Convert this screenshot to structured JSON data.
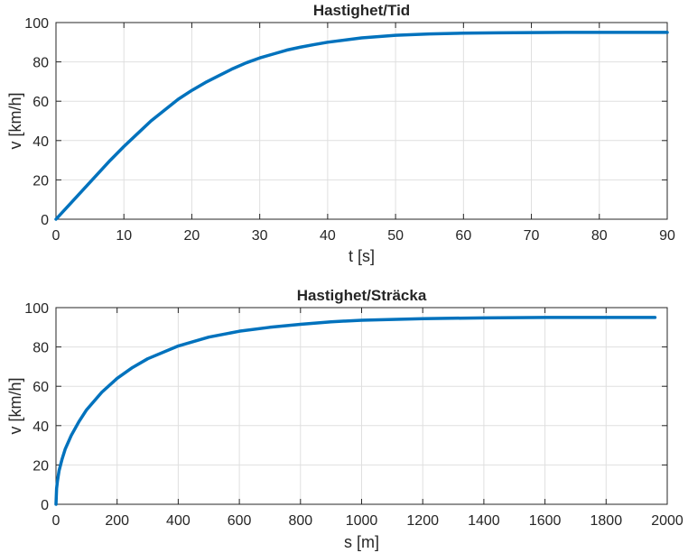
{
  "chart_data": [
    {
      "type": "line",
      "title": "Hastighet/Tid",
      "xlabel": "t [s]",
      "ylabel": "v [km/h]",
      "xlim": [
        0,
        90
      ],
      "ylim": [
        0,
        100
      ],
      "xticks": [
        0,
        10,
        20,
        30,
        40,
        50,
        60,
        70,
        80,
        90
      ],
      "yticks": [
        0,
        20,
        40,
        60,
        80,
        100
      ],
      "grid": true,
      "line_color": "#0072BD",
      "series": [
        {
          "x": [
            0,
            2,
            4,
            6,
            8,
            10,
            12,
            14,
            16,
            18,
            20,
            22,
            24,
            26,
            28,
            30,
            32,
            34,
            36,
            38,
            40,
            45,
            50,
            55,
            60,
            65,
            70,
            75,
            80,
            85,
            90
          ],
          "values": [
            0,
            7.5,
            15,
            22.5,
            30,
            37,
            43.5,
            50,
            55.5,
            61,
            65.5,
            69.5,
            73,
            76.5,
            79.5,
            82,
            84,
            86,
            87.5,
            88.8,
            90,
            92.2,
            93.5,
            94.2,
            94.6,
            94.8,
            94.9,
            95,
            95,
            95,
            95
          ]
        }
      ]
    },
    {
      "type": "line",
      "title": "Hastighet/Sträcka",
      "xlabel": "s [m]",
      "ylabel": "v [km/h]",
      "xlim": [
        0,
        2000
      ],
      "ylim": [
        0,
        100
      ],
      "xticks": [
        0,
        200,
        400,
        600,
        800,
        1000,
        1200,
        1400,
        1600,
        1800,
        2000
      ],
      "yticks": [
        0,
        20,
        40,
        60,
        80,
        100
      ],
      "grid": true,
      "line_color": "#0072BD",
      "series": [
        {
          "x": [
            0,
            2,
            5,
            10,
            20,
            30,
            50,
            75,
            100,
            150,
            200,
            250,
            300,
            400,
            500,
            600,
            700,
            800,
            900,
            1000,
            1200,
            1400,
            1600,
            1800,
            1960
          ],
          "values": [
            0,
            8,
            12,
            17,
            23,
            28,
            35,
            42,
            48,
            57,
            64,
            69.5,
            74,
            80.5,
            85,
            88,
            90,
            91.5,
            92.8,
            93.6,
            94.4,
            94.8,
            95,
            95,
            95
          ]
        }
      ]
    }
  ]
}
